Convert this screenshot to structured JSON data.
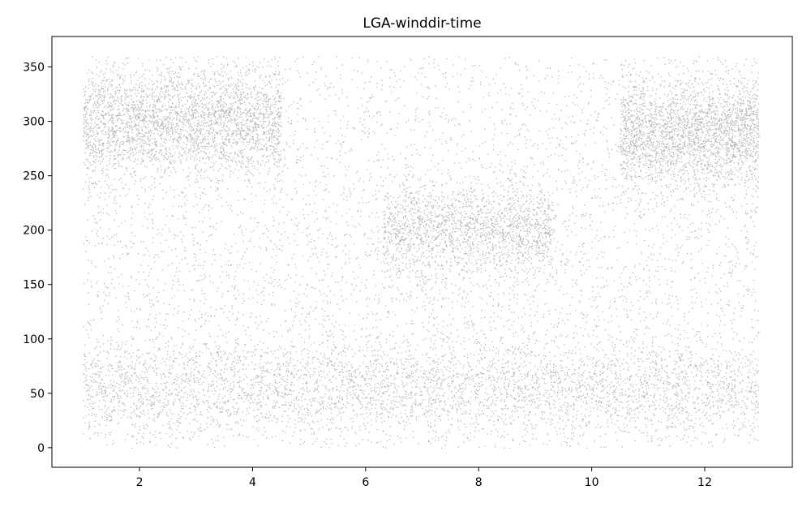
{
  "chart_data": {
    "type": "scatter",
    "title": "LGA-winddir-time",
    "xlabel": "",
    "ylabel": "",
    "xlim": [
      0.45,
      13.55
    ],
    "ylim": [
      -18,
      378
    ],
    "x_ticks": [
      2,
      4,
      6,
      8,
      10,
      12
    ],
    "y_ticks": [
      0,
      50,
      100,
      150,
      200,
      250,
      300,
      350
    ],
    "x_tick_labels": [
      "2",
      "4",
      "6",
      "8",
      "10",
      "12"
    ],
    "y_tick_labels": [
      "0",
      "50",
      "100",
      "150",
      "200",
      "250",
      "300",
      "350"
    ],
    "grid": false,
    "legend": "none",
    "marker_color": "#000000",
    "marker_opacity": 0.28,
    "x_range_of_points": [
      1.0,
      12.95
    ],
    "y_range_of_points": [
      0,
      360
    ],
    "point_count": 16000,
    "density_clusters": [
      {
        "x_range": [
          1,
          4.5
        ],
        "y_center": 300,
        "y_spread": 25,
        "weight": 0.18
      },
      {
        "x_range": [
          10.5,
          12.95
        ],
        "y_center": 290,
        "y_spread": 25,
        "weight": 0.15
      },
      {
        "x_range": [
          6.3,
          9.3
        ],
        "y_center": 200,
        "y_spread": 20,
        "weight": 0.1
      },
      {
        "x_range": [
          1,
          12.95
        ],
        "y_center": 55,
        "y_spread": 22,
        "weight": 0.22
      },
      {
        "x_range": [
          1,
          12.95
        ],
        "y_center": 180,
        "y_spread": 170,
        "weight": 0.35
      }
    ]
  }
}
